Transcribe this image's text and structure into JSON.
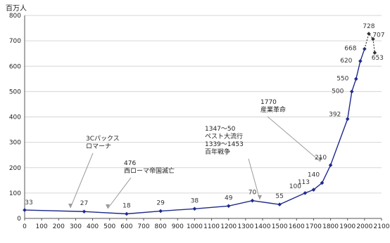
{
  "chart_data": {
    "type": "line",
    "ylabel": "百万人",
    "xlim": [
      0,
      2100
    ],
    "ylim": [
      0,
      800
    ],
    "x_ticks": [
      0,
      100,
      200,
      300,
      400,
      500,
      600,
      700,
      800,
      900,
      1000,
      1100,
      1200,
      1300,
      1400,
      1500,
      1600,
      1700,
      1800,
      1900,
      2000,
      2100
    ],
    "y_ticks": [
      0,
      100,
      200,
      300,
      400,
      500,
      600,
      700,
      800
    ],
    "grid": true,
    "series": [
      {
        "style": "solid",
        "color": "#1f2a8c",
        "points": [
          {
            "x": 0,
            "y": 33,
            "label": "33"
          },
          {
            "x": 350,
            "y": 27,
            "label": "27"
          },
          {
            "x": 600,
            "y": 18,
            "label": "18"
          },
          {
            "x": 800,
            "y": 29,
            "label": "29"
          },
          {
            "x": 1000,
            "y": 38,
            "label": "38"
          },
          {
            "x": 1200,
            "y": 49,
            "label": "49"
          },
          {
            "x": 1340,
            "y": 70,
            "label": "70"
          },
          {
            "x": 1500,
            "y": 55,
            "label": "55"
          },
          {
            "x": 1650,
            "y": 100,
            "label": "100"
          },
          {
            "x": 1700,
            "y": 113,
            "label": "113"
          },
          {
            "x": 1750,
            "y": 140,
            "label": "140"
          },
          {
            "x": 1800,
            "y": 210,
            "label": "210"
          },
          {
            "x": 1900,
            "y": 392,
            "label": "392"
          },
          {
            "x": 1925,
            "y": 500,
            "label": "500"
          },
          {
            "x": 1950,
            "y": 550,
            "label": "550"
          },
          {
            "x": 1975,
            "y": 620,
            "label": "620"
          },
          {
            "x": 2000,
            "y": 668,
            "label": "668"
          }
        ]
      },
      {
        "style": "dotted",
        "color": "#333333",
        "points": [
          {
            "x": 2000,
            "y": 668,
            "label": ""
          },
          {
            "x": 2025,
            "y": 728,
            "label": "728"
          },
          {
            "x": 2050,
            "y": 707,
            "label": "707"
          },
          {
            "x": 2060,
            "y": 653,
            "label": "653"
          }
        ]
      }
    ],
    "annotations": [
      {
        "lines": [
          "3Cパックス",
          "ロマーナ"
        ],
        "at_x": 250,
        "at_y": 10
      },
      {
        "lines": [
          "476",
          "西ローマ帝国滅亡"
        ],
        "at_x": 490,
        "at_y": 10
      },
      {
        "lines": [
          "1347〜50",
          "ペスト大流行",
          "1339〜1453",
          "百年戦争"
        ],
        "at_x": 1390,
        "at_y": 110
      },
      {
        "lines": [
          "1770",
          "産業革命"
        ],
        "at_x": 1740,
        "at_y": 230
      }
    ]
  }
}
